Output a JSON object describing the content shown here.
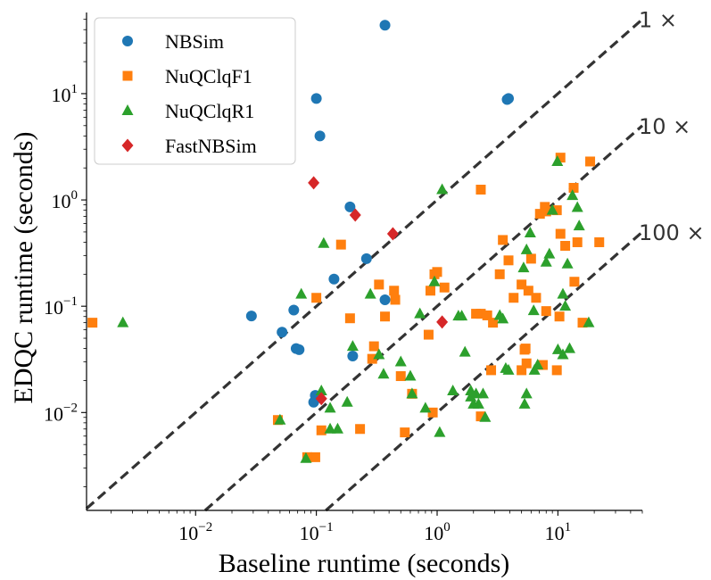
{
  "chart_data": {
    "type": "scatter",
    "x_scale": "log",
    "y_scale": "log",
    "xlabel": "Baseline runtime (seconds)",
    "ylabel": "EDQC runtime (seconds)",
    "xlim": [
      0.00125,
      50
    ],
    "ylim": [
      0.0012,
      58
    ],
    "x_ticks": [
      {
        "value": 0.01,
        "base": "10",
        "exp": "−2"
      },
      {
        "value": 0.1,
        "base": "10",
        "exp": "−1"
      },
      {
        "value": 1,
        "base": "10",
        "exp": "0"
      },
      {
        "value": 10,
        "base": "10",
        "exp": "1"
      }
    ],
    "y_ticks": [
      {
        "value": 0.01,
        "base": "10",
        "exp": "−2"
      },
      {
        "value": 0.1,
        "base": "10",
        "exp": "−1"
      },
      {
        "value": 1,
        "base": "10",
        "exp": "0"
      },
      {
        "value": 10,
        "base": "10",
        "exp": "1"
      }
    ],
    "reference_lines": [
      {
        "factor": 1,
        "label": "1 ×"
      },
      {
        "factor": 10,
        "label": "10 ×"
      },
      {
        "factor": 100,
        "label": "100 ×"
      }
    ],
    "legend_position": "top-left",
    "series": [
      {
        "name": "NBSim",
        "marker": "circle",
        "color": "#1f77b4",
        "points": [
          [
            0.37,
            44
          ],
          [
            0.1,
            9
          ],
          [
            0.107,
            4
          ],
          [
            3.8,
            8.8
          ],
          [
            3.9,
            9
          ],
          [
            0.19,
            0.86
          ],
          [
            0.26,
            0.28
          ],
          [
            0.14,
            0.18
          ],
          [
            0.065,
            0.092
          ],
          [
            0.029,
            0.081
          ],
          [
            0.052,
            0.057
          ],
          [
            0.068,
            0.04
          ],
          [
            0.072,
            0.039
          ],
          [
            0.2,
            0.034
          ],
          [
            0.37,
            0.115
          ],
          [
            0.098,
            0.0145
          ],
          [
            0.104,
            0.0138
          ],
          [
            0.095,
            0.0125
          ]
        ]
      },
      {
        "name": "NuQClqF1",
        "marker": "square",
        "color": "#ff7f0e",
        "points": [
          [
            0.0014,
            0.07
          ],
          [
            0.16,
            0.38
          ],
          [
            0.33,
            0.16
          ],
          [
            0.1,
            0.12
          ],
          [
            0.19,
            0.077
          ],
          [
            0.37,
            0.08
          ],
          [
            0.3,
            0.042
          ],
          [
            0.29,
            0.032
          ],
          [
            0.44,
            0.14
          ],
          [
            0.45,
            0.115
          ],
          [
            0.5,
            0.022
          ],
          [
            0.62,
            0.015
          ],
          [
            0.88,
            0.14
          ],
          [
            0.95,
            0.2
          ],
          [
            1.0,
            0.21
          ],
          [
            1.15,
            0.15
          ],
          [
            0.85,
            0.054
          ],
          [
            0.92,
            0.01
          ],
          [
            0.54,
            0.0065
          ],
          [
            0.23,
            0.007
          ],
          [
            0.098,
            0.0038
          ],
          [
            0.084,
            0.0038
          ],
          [
            0.048,
            0.0085
          ],
          [
            0.11,
            0.0068
          ],
          [
            2.3,
            1.25
          ],
          [
            3.5,
            0.42
          ],
          [
            3.9,
            0.27
          ],
          [
            3.3,
            0.2
          ],
          [
            2.3,
            0.085
          ],
          [
            2.6,
            0.082
          ],
          [
            2.1,
            0.085
          ],
          [
            2.8,
            0.025
          ],
          [
            2.3,
            0.0092
          ],
          [
            2.9,
            0.07
          ],
          [
            5.0,
            0.16
          ],
          [
            4.3,
            0.12
          ],
          [
            5.7,
            0.14
          ],
          [
            6.6,
            0.12
          ],
          [
            6.0,
            0.28
          ],
          [
            7.1,
            0.74
          ],
          [
            7.8,
            0.86
          ],
          [
            8.0,
            0.78
          ],
          [
            9.8,
            0.8
          ],
          [
            10.5,
            2.5
          ],
          [
            18.5,
            2.3
          ],
          [
            13.5,
            1.3
          ],
          [
            10.5,
            0.48
          ],
          [
            11.5,
            0.37
          ],
          [
            14.5,
            0.4
          ],
          [
            22,
            0.4
          ],
          [
            10.3,
            0.08
          ],
          [
            16,
            0.07
          ],
          [
            13.7,
            0.17
          ],
          [
            8.0,
            0.09
          ],
          [
            5.3,
            0.039
          ],
          [
            5.4,
            0.04
          ],
          [
            5.5,
            0.029
          ],
          [
            5.0,
            0.025
          ],
          [
            9.8,
            0.025
          ],
          [
            7.5,
            0.028
          ]
        ]
      },
      {
        "name": "NuQClqR1",
        "marker": "triangle",
        "color": "#2ca02c",
        "points": [
          [
            0.0025,
            0.07
          ],
          [
            0.075,
            0.13
          ],
          [
            0.115,
            0.39
          ],
          [
            0.082,
            0.0037
          ],
          [
            0.05,
            0.0085
          ],
          [
            0.11,
            0.016
          ],
          [
            0.13,
            0.011
          ],
          [
            0.13,
            0.007
          ],
          [
            0.15,
            0.007
          ],
          [
            0.18,
            0.0125
          ],
          [
            0.2,
            0.042
          ],
          [
            0.28,
            0.13
          ],
          [
            0.33,
            0.035
          ],
          [
            0.36,
            0.023
          ],
          [
            0.5,
            0.03
          ],
          [
            0.6,
            0.022
          ],
          [
            0.62,
            0.015
          ],
          [
            0.72,
            0.085
          ],
          [
            0.8,
            0.011
          ],
          [
            0.95,
            0.17
          ],
          [
            1.05,
            0.0065
          ],
          [
            1.1,
            1.25
          ],
          [
            1.5,
            0.081
          ],
          [
            1.6,
            0.081
          ],
          [
            1.7,
            0.037
          ],
          [
            1.9,
            0.016
          ],
          [
            2.2,
            0.012
          ],
          [
            2.4,
            0.015
          ],
          [
            2.5,
            0.009
          ],
          [
            3.3,
            0.082
          ],
          [
            3.5,
            0.076
          ],
          [
            3.7,
            0.026
          ],
          [
            3.9,
            0.025
          ],
          [
            5.2,
            0.23
          ],
          [
            5.5,
            0.34
          ],
          [
            5.9,
            0.49
          ],
          [
            6.3,
            0.091
          ],
          [
            5.5,
            0.015
          ],
          [
            6.4,
            0.025
          ],
          [
            6.8,
            0.028
          ],
          [
            8.0,
            0.26
          ],
          [
            8.5,
            0.31
          ],
          [
            9.0,
            0.8
          ],
          [
            9.9,
            2.3
          ],
          [
            11.5,
            0.1
          ],
          [
            11.0,
            0.13
          ],
          [
            12.0,
            0.25
          ],
          [
            13.2,
            1.1
          ],
          [
            14.5,
            0.85
          ],
          [
            15.0,
            0.57
          ],
          [
            18.0,
            0.07
          ],
          [
            11.0,
            0.035
          ],
          [
            12.5,
            0.04
          ],
          [
            10.0,
            0.039
          ],
          [
            5.3,
            0.012
          ],
          [
            1.35,
            0.016
          ],
          [
            2.1,
            0.015
          ],
          [
            1.9,
            0.014
          ],
          [
            2.0,
            0.012
          ]
        ]
      },
      {
        "name": "FastNBSim",
        "marker": "diamond",
        "color": "#d62728",
        "points": [
          [
            0.095,
            1.45
          ],
          [
            0.21,
            0.72
          ],
          [
            0.43,
            0.48
          ],
          [
            1.1,
            0.071
          ],
          [
            0.11,
            0.0135
          ]
        ]
      }
    ]
  }
}
